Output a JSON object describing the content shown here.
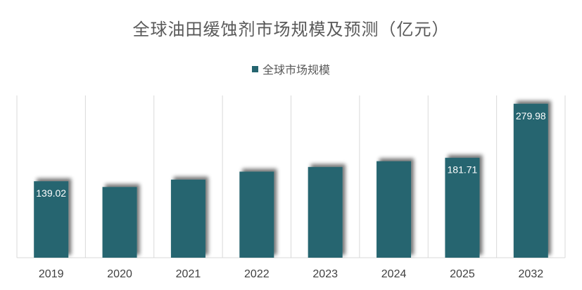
{
  "chart_data": {
    "type": "bar",
    "title": "全球油田缓蚀剂市场规模及预测（亿元）",
    "categories": [
      "2019",
      "2020",
      "2021",
      "2022",
      "2023",
      "2024",
      "2025",
      "2032"
    ],
    "series": [
      {
        "name": "全球市场规模",
        "values": [
          139.02,
          128.6,
          142.0,
          156.5,
          165.0,
          175.5,
          181.71,
          279.98
        ],
        "data_labels": [
          "139.02",
          "",
          "",
          "",
          "",
          "",
          "181.71",
          "279.98"
        ]
      }
    ],
    "xlabel": "",
    "ylabel": "",
    "ylim": [
      0,
      295
    ],
    "grid": "vertical category separators",
    "legend_position": "top-center",
    "bar_color": "#256570"
  }
}
